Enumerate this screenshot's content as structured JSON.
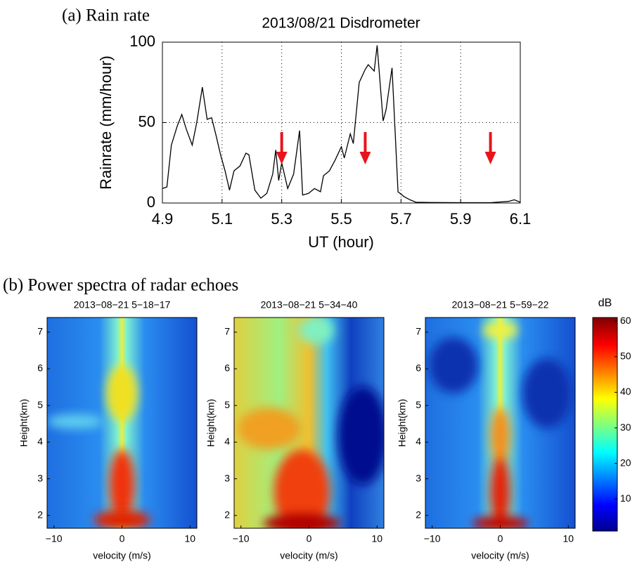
{
  "chart_data": [
    {
      "type": "line",
      "panel_label": "(a)  Rain rate",
      "title": "2013/08/21 Disdrometer",
      "x_label": "UT    (hour)",
      "y_label": "Rainrate   (mm/hour)",
      "x": [
        4.9,
        4.915,
        4.93,
        4.95,
        4.965,
        4.98,
        5.0,
        5.015,
        5.034,
        5.05,
        5.065,
        5.08,
        5.095,
        5.11,
        5.125,
        5.14,
        5.16,
        5.18,
        5.19,
        5.21,
        5.23,
        5.25,
        5.27,
        5.28,
        5.29,
        5.3,
        5.32,
        5.34,
        5.36,
        5.37,
        5.39,
        5.41,
        5.43,
        5.44,
        5.46,
        5.48,
        5.5,
        5.51,
        5.53,
        5.54,
        5.56,
        5.58,
        5.59,
        5.61,
        5.62,
        5.64,
        5.65,
        5.67,
        5.69,
        5.71,
        5.73,
        5.75,
        5.8,
        5.9,
        6.0,
        6.02,
        6.06,
        6.08,
        6.1
      ],
      "values": [
        9,
        10,
        36,
        48,
        55,
        46,
        36,
        50,
        72,
        52,
        53,
        42,
        30,
        20,
        8,
        20,
        23,
        31,
        30,
        8,
        3,
        6,
        18,
        33,
        14,
        25,
        9,
        18,
        45,
        5,
        6,
        9,
        7,
        17,
        20,
        27,
        35,
        28,
        43,
        37,
        75,
        83,
        86,
        82,
        98,
        51,
        58,
        84,
        7,
        4,
        2,
        0.5,
        0.3,
        0.2,
        0.2,
        0.5,
        1,
        2,
        0.5
      ],
      "color": "#000000",
      "xlim": [
        4.9,
        6.1
      ],
      "xticks": [
        4.9,
        5.1,
        5.3,
        5.5,
        5.7,
        5.9,
        6.1
      ],
      "ylim": [
        0,
        100
      ],
      "yticks": [
        0,
        50,
        100
      ],
      "grid": true,
      "arrows_x": [
        5.3,
        5.58,
        6.0
      ],
      "arrow_color": "#e8141b"
    },
    {
      "type": "heatmap",
      "panel_label": "(b)  Power spectra of radar echoes",
      "title": "2013−08−21 5−18−17",
      "x_label": "velocity (m/s)",
      "y_label": "Height(km)",
      "xlim": [
        -11,
        11
      ],
      "xticks": [
        {
          "value": -10,
          "label": "−10"
        },
        0,
        10
      ],
      "ylim": [
        1.65,
        7.4
      ],
      "yticks": [
        2,
        3,
        4,
        5,
        6,
        7
      ]
    },
    {
      "type": "heatmap",
      "title": "2013−08−21 5−34−40",
      "x_label": "velocity (m/s)",
      "y_label": "Height(km)",
      "xlim": [
        -11,
        11
      ],
      "xticks": [
        {
          "value": -10,
          "label": "−10"
        },
        0,
        10
      ],
      "ylim": [
        1.65,
        7.4
      ],
      "yticks": [
        2,
        3,
        4,
        5,
        6,
        7
      ]
    },
    {
      "type": "heatmap",
      "title": "2013−08−21 5−59−22",
      "x_label": "velocity (m/s)",
      "y_label": "Height(km)",
      "xlim": [
        -11,
        11
      ],
      "xticks": [
        {
          "value": -10,
          "label": "−10"
        },
        0,
        10
      ],
      "ylim": [
        1.65,
        7.4
      ],
      "yticks": [
        2,
        3,
        4,
        5,
        6,
        7
      ]
    },
    {
      "type": "colorbar",
      "label": "dB",
      "lim": [
        1,
        61
      ],
      "ticks": [
        10,
        20,
        30,
        40,
        50,
        60
      ]
    }
  ]
}
